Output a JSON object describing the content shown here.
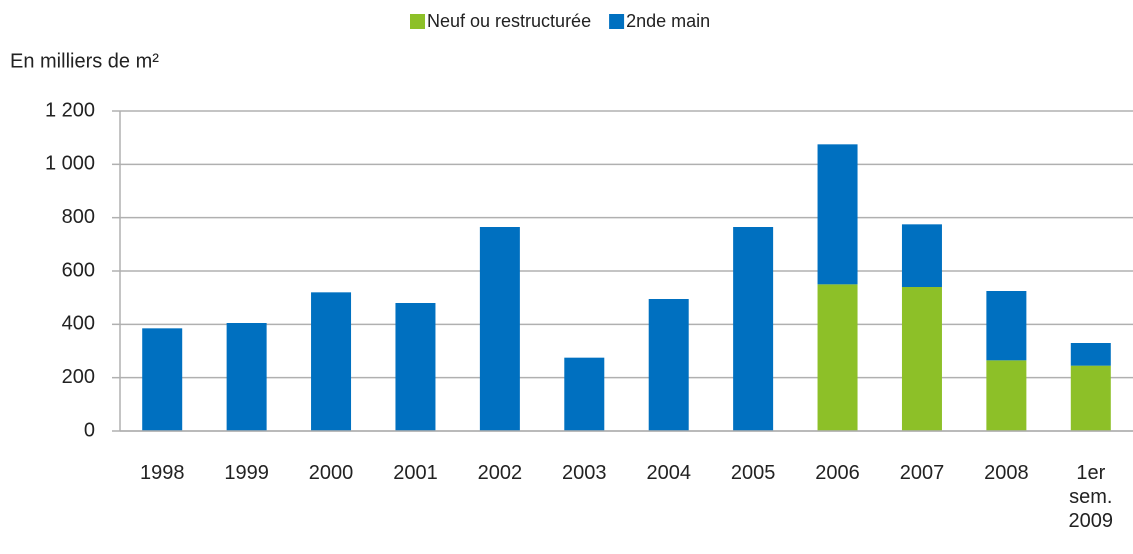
{
  "chart_data": {
    "type": "bar",
    "stacked": true,
    "y_axis_label": "En milliers de m²",
    "categories": [
      "1998",
      "1999",
      "2000",
      "2001",
      "2002",
      "2003",
      "2004",
      "2005",
      "2006",
      "2007",
      "2008",
      "1er sem. 2009"
    ],
    "series": [
      {
        "name": "Neuf ou restructurée",
        "color": "#8dc028",
        "values": [
          null,
          null,
          null,
          null,
          null,
          null,
          null,
          null,
          550,
          540,
          265,
          245
        ]
      },
      {
        "name": "2nde main",
        "color": "#0070c0",
        "values": [
          385,
          405,
          520,
          480,
          765,
          275,
          495,
          765,
          525,
          235,
          260,
          85
        ]
      }
    ],
    "ylim": [
      0,
      1200
    ],
    "yticks": [
      0,
      200,
      400,
      600,
      800,
      {
        "value": 1000,
        "label": "1 000"
      },
      {
        "value": 1200,
        "label": "1 200"
      }
    ],
    "grid": true,
    "legend": "top"
  }
}
